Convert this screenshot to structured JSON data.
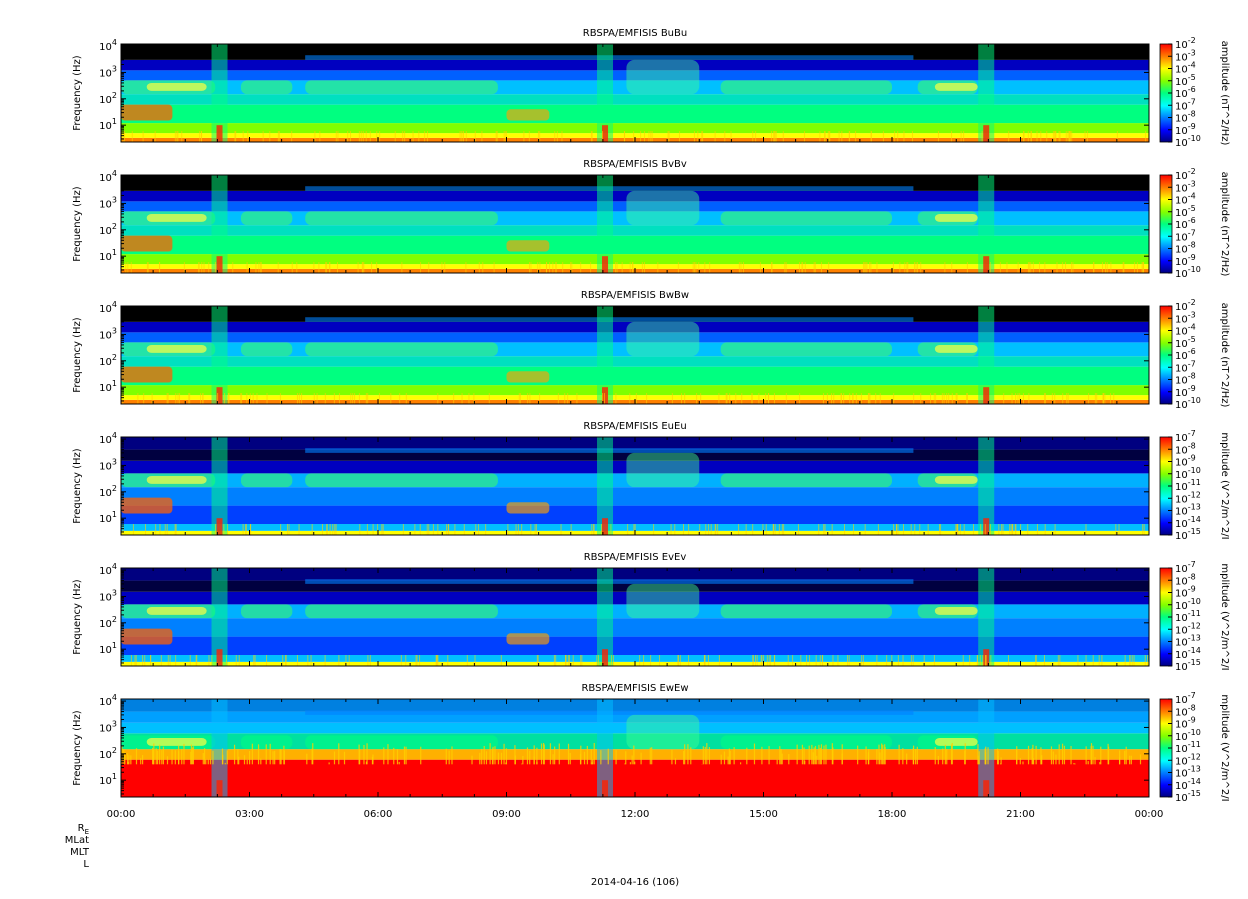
{
  "chart_data": {
    "type": "heatmap",
    "date_label": "2014-04-16 (106)",
    "x_tick_labels": [
      "00:00",
      "03:00",
      "06:00",
      "09:00",
      "12:00",
      "15:00",
      "18:00",
      "21:00",
      "00:00"
    ],
    "x_tick_hours": [
      0,
      3,
      6,
      9,
      12,
      15,
      18,
      21,
      24
    ],
    "xlim_hours": [
      0,
      24
    ],
    "ephemeris_labels": [
      "R_E",
      "MLat",
      "MLT",
      "L"
    ],
    "ylabel": "Frequency (Hz)",
    "y_scale": "log",
    "y_tick_labels": [
      {
        "base": "10",
        "exp": "4",
        "value": 10000
      },
      {
        "base": "10",
        "exp": "3",
        "value": 1000
      },
      {
        "base": "10",
        "exp": "2",
        "value": 100
      },
      {
        "base": "10",
        "exp": "1",
        "value": 10
      }
    ],
    "ylim_hz": [
      2.3,
      12000
    ],
    "colormap": [
      "#000080",
      "#0000ff",
      "#0080ff",
      "#00ffff",
      "#00ff80",
      "#80ff00",
      "#ffff00",
      "#ff8000",
      "#ff0000"
    ],
    "panels": [
      {
        "title": "RBSPA/EMFISIS  BuBu",
        "cbar_label": "amplitude (nT^2/Hz)",
        "cbar_exponents": [
          "-2",
          "-3",
          "-4",
          "-5",
          "-6",
          "-7",
          "-8",
          "-9",
          "-10"
        ],
        "kind": "B"
      },
      {
        "title": "RBSPA/EMFISIS  BvBv",
        "cbar_label": "amplitude (nT^2/Hz)",
        "cbar_exponents": [
          "-2",
          "-3",
          "-4",
          "-5",
          "-6",
          "-7",
          "-8",
          "-9",
          "-10"
        ],
        "kind": "B"
      },
      {
        "title": "RBSPA/EMFISIS  BwBw",
        "cbar_label": "amplitude (nT^2/Hz)",
        "cbar_exponents": [
          "-2",
          "-3",
          "-4",
          "-5",
          "-6",
          "-7",
          "-8",
          "-9",
          "-10"
        ],
        "kind": "B"
      },
      {
        "title": "RBSPA/EMFISIS  EuEu",
        "cbar_label": "mplitude (V^2/m^2/I",
        "cbar_exponents": [
          "-7",
          "-8",
          "-9",
          "-10",
          "-11",
          "-12",
          "-13",
          "-14",
          "-15"
        ],
        "kind": "E"
      },
      {
        "title": "RBSPA/EMFISIS  EvEv",
        "cbar_label": "mplitude (V^2/m^2/I",
        "cbar_exponents": [
          "-7",
          "-8",
          "-9",
          "-10",
          "-11",
          "-12",
          "-13",
          "-14",
          "-15"
        ],
        "kind": "E"
      },
      {
        "title": "RBSPA/EMFISIS  EwEw",
        "cbar_label": "mplitude (V^2/m^2/I",
        "cbar_exponents": [
          "-7",
          "-8",
          "-9",
          "-10",
          "-11",
          "-12",
          "-13",
          "-14",
          "-15"
        ],
        "kind": "Ew"
      }
    ]
  }
}
